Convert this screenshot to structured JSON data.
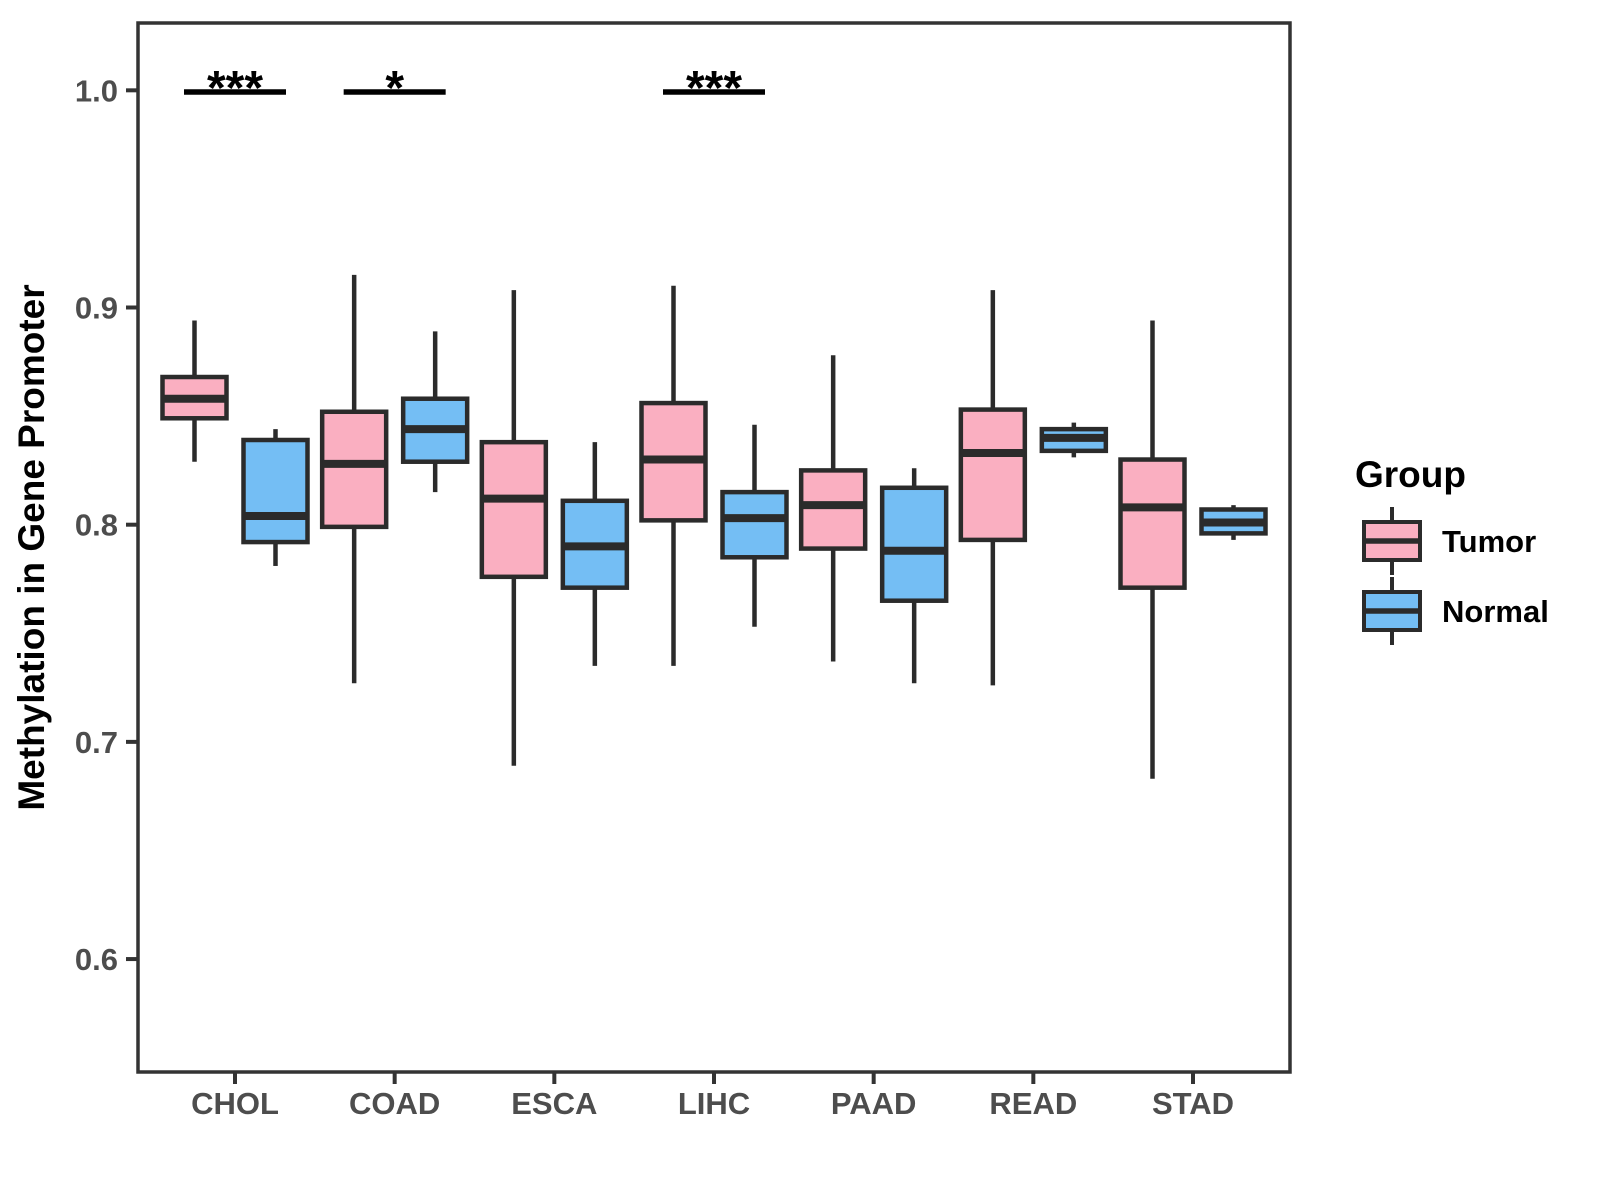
{
  "chart_data": {
    "type": "grouped_boxplot",
    "title": "",
    "xlabel": "",
    "ylabel": "Methylation in Gene Promoter",
    "categories": [
      "CHOL",
      "COAD",
      "ESCA",
      "LIHC",
      "PAAD",
      "READ",
      "STAD"
    ],
    "y_ticks": [
      1.0,
      0.9,
      0.8,
      0.7,
      0.6
    ],
    "y_tick_labels": [
      "1.0",
      "0.9",
      "0.8",
      "0.7",
      "0.6"
    ],
    "ylim": [
      0.548,
      1.031
    ],
    "grid": "off",
    "legend": {
      "title": "Group",
      "position": "right",
      "entries": [
        {
          "label": "Tumor",
          "color": "#FAAFC1"
        },
        {
          "label": "Normal",
          "color": "#74BEF4"
        }
      ]
    },
    "series": [
      {
        "name": "Tumor",
        "color": "#FAAFC1",
        "boxes": [
          {
            "category": "CHOL",
            "whisker_low": 0.829,
            "q1": 0.849,
            "median": 0.858,
            "q3": 0.868,
            "whisker_high": 0.894
          },
          {
            "category": "COAD",
            "whisker_low": 0.727,
            "q1": 0.799,
            "median": 0.828,
            "q3": 0.852,
            "whisker_high": 0.915
          },
          {
            "category": "ESCA",
            "whisker_low": 0.689,
            "q1": 0.776,
            "median": 0.812,
            "q3": 0.838,
            "whisker_high": 0.908
          },
          {
            "category": "LIHC",
            "whisker_low": 0.735,
            "q1": 0.802,
            "median": 0.83,
            "q3": 0.856,
            "whisker_high": 0.91
          },
          {
            "category": "PAAD",
            "whisker_low": 0.737,
            "q1": 0.789,
            "median": 0.809,
            "q3": 0.825,
            "whisker_high": 0.878
          },
          {
            "category": "READ",
            "whisker_low": 0.726,
            "q1": 0.793,
            "median": 0.833,
            "q3": 0.853,
            "whisker_high": 0.908
          },
          {
            "category": "STAD",
            "whisker_low": 0.683,
            "q1": 0.771,
            "median": 0.808,
            "q3": 0.83,
            "whisker_high": 0.894
          }
        ]
      },
      {
        "name": "Normal",
        "color": "#74BEF4",
        "boxes": [
          {
            "category": "CHOL",
            "whisker_low": 0.781,
            "q1": 0.792,
            "median": 0.804,
            "q3": 0.839,
            "whisker_high": 0.844
          },
          {
            "category": "COAD",
            "whisker_low": 0.815,
            "q1": 0.829,
            "median": 0.844,
            "q3": 0.858,
            "whisker_high": 0.889
          },
          {
            "category": "ESCA",
            "whisker_low": 0.735,
            "q1": 0.771,
            "median": 0.79,
            "q3": 0.811,
            "whisker_high": 0.838
          },
          {
            "category": "LIHC",
            "whisker_low": 0.753,
            "q1": 0.785,
            "median": 0.803,
            "q3": 0.815,
            "whisker_high": 0.846
          },
          {
            "category": "PAAD",
            "whisker_low": 0.727,
            "q1": 0.765,
            "median": 0.788,
            "q3": 0.817,
            "whisker_high": 0.826
          },
          {
            "category": "READ",
            "whisker_low": 0.831,
            "q1": 0.834,
            "median": 0.84,
            "q3": 0.844,
            "whisker_high": 0.847
          },
          {
            "category": "STAD",
            "whisker_low": 0.793,
            "q1": 0.796,
            "median": 0.801,
            "q3": 0.807,
            "whisker_high": 0.809
          }
        ]
      }
    ],
    "significance": [
      {
        "category": "CHOL",
        "label": "***"
      },
      {
        "category": "COAD",
        "label": "*"
      },
      {
        "category": "LIHC",
        "label": "***"
      }
    ],
    "colors": {
      "box_stroke": "#2B2B2B",
      "panel_border": "#333333",
      "tick_text": "#4D4D4D",
      "axis_title_text": "#000000",
      "legend_text": "#000000",
      "background": "#FFFFFF"
    }
  }
}
